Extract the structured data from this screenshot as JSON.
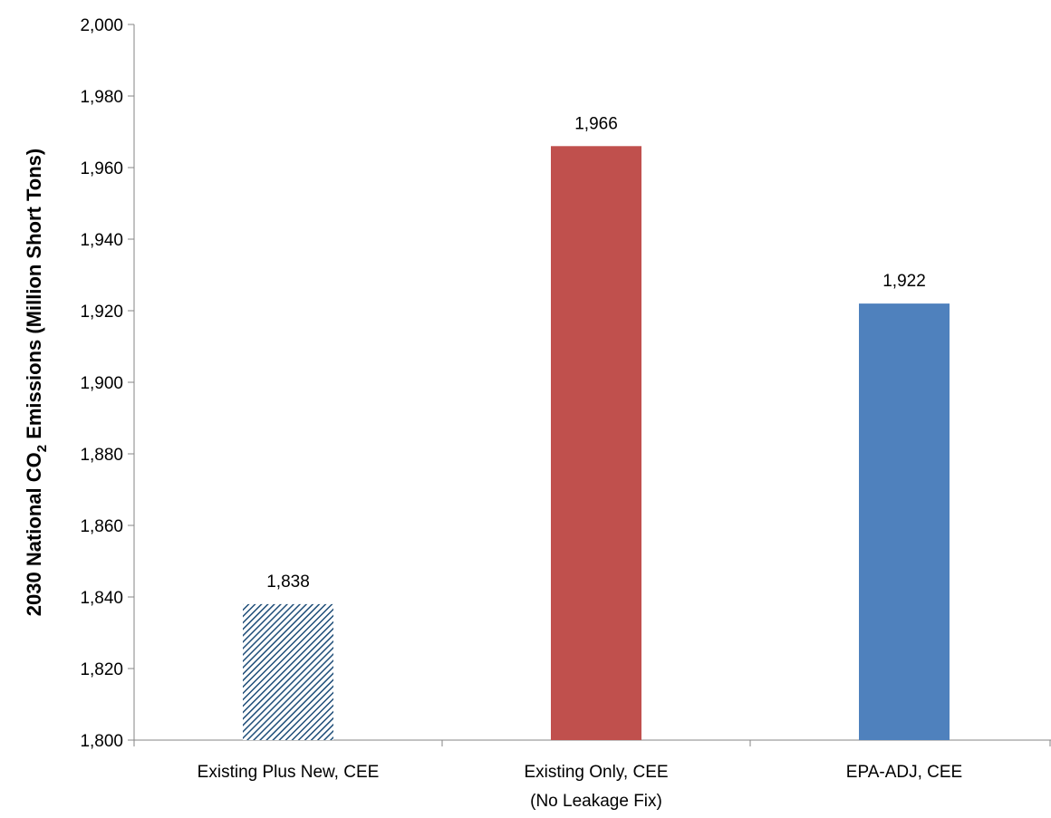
{
  "chart_data": {
    "type": "bar",
    "categories": [
      [
        "Existing Plus New, CEE"
      ],
      [
        "Existing Only, CEE",
        "(No Leakage Fix)"
      ],
      [
        "EPA-ADJ, CEE"
      ]
    ],
    "values": [
      1838,
      1966,
      1922
    ],
    "data_labels": [
      "1,838",
      "1,966",
      "1,922"
    ],
    "bar_colors": [
      "#1f4e79",
      "#c0504d",
      "#4f81bd"
    ],
    "bar_patterns": [
      "diagonal-hatch",
      "solid",
      "solid"
    ],
    "title": "",
    "xlabel": "",
    "ylabel": {
      "pre": "2030 National CO",
      "sub": "2",
      "post": " Emissions (Million Short Tons)"
    },
    "ylim": [
      1800,
      2000
    ],
    "yticks": [
      1800,
      1820,
      1840,
      1860,
      1880,
      1900,
      1920,
      1940,
      1960,
      1980,
      2000
    ],
    "ytick_labels": [
      "1,800",
      "1,820",
      "1,840",
      "1,860",
      "1,880",
      "1,900",
      "1,920",
      "1,940",
      "1,960",
      "1,980",
      "2,000"
    ],
    "grid": false,
    "legend": "none"
  }
}
